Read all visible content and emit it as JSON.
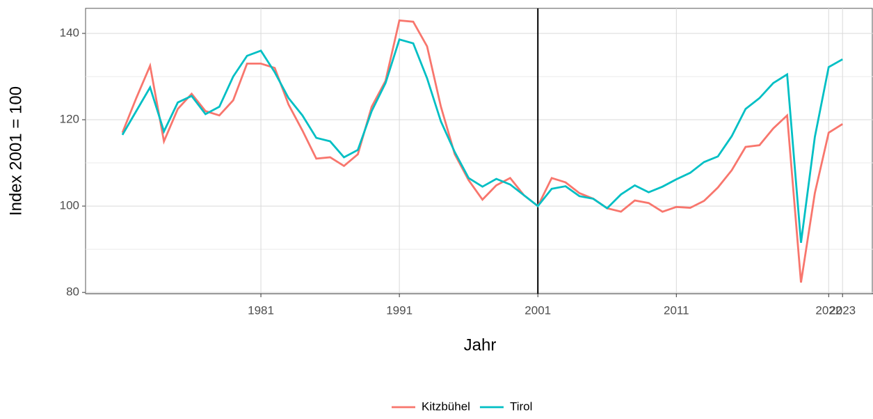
{
  "chart_data": {
    "type": "line",
    "x_label": "Jahr",
    "y_label": "Index 2001 = 100",
    "x": [
      1971,
      1972,
      1973,
      1974,
      1975,
      1976,
      1977,
      1978,
      1979,
      1980,
      1981,
      1982,
      1983,
      1984,
      1985,
      1986,
      1987,
      1988,
      1989,
      1990,
      1991,
      1992,
      1993,
      1994,
      1995,
      1996,
      1997,
      1998,
      1999,
      2000,
      2001,
      2002,
      2003,
      2004,
      2005,
      2006,
      2007,
      2008,
      2009,
      2010,
      2011,
      2012,
      2013,
      2014,
      2015,
      2016,
      2017,
      2018,
      2019,
      2020,
      2021,
      2022,
      2023
    ],
    "series": [
      {
        "name": "Kitzbühel",
        "color": "#F8766D",
        "values": [
          117,
          125,
          132.5,
          115,
          122.5,
          126,
          122,
          121,
          124.5,
          133,
          133,
          132,
          123.5,
          117.5,
          111,
          111.3,
          109.3,
          112,
          123,
          129,
          143,
          142.7,
          137,
          123,
          112,
          106,
          101.5,
          104.8,
          106.5,
          102.5,
          100,
          106.5,
          105.5,
          103,
          101.7,
          99.5,
          98.7,
          101.3,
          100.7,
          98.7,
          99.8,
          99.6,
          101.2,
          104.3,
          108.3,
          113.7,
          114.1,
          118,
          121,
          82.3,
          103,
          117,
          119
        ]
      },
      {
        "name": "Tirol",
        "color": "#00BFC4",
        "values": [
          116.5,
          122,
          127.5,
          117.3,
          124,
          125.5,
          121.3,
          123,
          130,
          134.8,
          136,
          131,
          125,
          121,
          115.8,
          115,
          111.3,
          113,
          122,
          128.5,
          138.6,
          137.7,
          129.6,
          119.6,
          112.5,
          106.5,
          104.5,
          106.3,
          105,
          102.5,
          100,
          104,
          104.6,
          102.3,
          101.7,
          99.5,
          102.7,
          104.8,
          103.2,
          104.5,
          106.2,
          107.7,
          110.2,
          111.5,
          116.2,
          122.5,
          125,
          128.5,
          130.5,
          91.5,
          116,
          132.2,
          134
        ]
      }
    ],
    "xlim": [
      1968.34,
      2025.2
    ],
    "xticks": [
      1981,
      1991,
      2001,
      2011,
      2022,
      2023
    ],
    "ylim": [
      79.7,
      145.8
    ],
    "yticks": [
      80,
      100,
      120,
      140
    ],
    "y_minor_ticks": [
      90,
      110,
      130
    ],
    "vline": 2001,
    "grid": true,
    "legend": "bottom"
  }
}
